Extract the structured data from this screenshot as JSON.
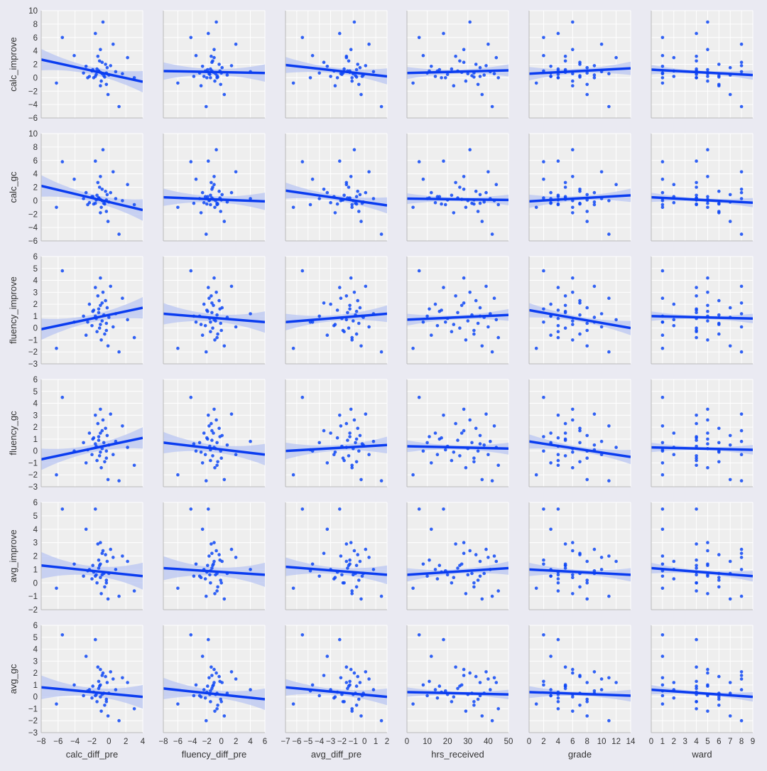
{
  "chart_data": {
    "type": "scatter",
    "style": {
      "background": "#eaeaf2",
      "panel_background": "#eeeeee",
      "grid_color": "#ffffff",
      "point_color": "#0d47f5",
      "line_color": "#0a3cf0",
      "band_color": "#b9c6f2",
      "axis_line_color": "#bbbbbb",
      "tick_text_color": "#333333",
      "grid": true
    },
    "x_variables": [
      {
        "key": "calc_diff_pre",
        "label": "calc_diff_pre",
        "range": [
          -8,
          4
        ],
        "ticks": [
          -8,
          -6,
          -4,
          -2,
          0,
          2,
          4
        ],
        "tick_labels": [
          "−8",
          "−6",
          "−4",
          "−2",
          "0",
          "2",
          "4"
        ]
      },
      {
        "key": "fluency_diff_pre",
        "label": "fluency_diff_pre",
        "range": [
          -8,
          6
        ],
        "ticks": [
          -8,
          -6,
          -4,
          -2,
          0,
          2,
          4,
          6
        ],
        "tick_labels": [
          "−8",
          "−6",
          "−4",
          "−2",
          "0",
          "2",
          "4",
          "6"
        ]
      },
      {
        "key": "avg_diff_pre",
        "label": "avg_diff_pre",
        "range": [
          -7,
          2
        ],
        "ticks": [
          -7,
          -6,
          -5,
          -4,
          -3,
          -2,
          -1,
          0,
          1,
          2
        ],
        "tick_labels": [
          "−7",
          "−6",
          "−5",
          "−4",
          "−3",
          "−2",
          "−1",
          "0",
          "1",
          "2"
        ]
      },
      {
        "key": "hrs_received",
        "label": "hrs_received",
        "range": [
          0,
          50
        ],
        "ticks": [
          0,
          10,
          20,
          30,
          40,
          50
        ],
        "tick_labels": [
          "0",
          "10",
          "20",
          "30",
          "40",
          "50"
        ]
      },
      {
        "key": "grade",
        "label": "grade",
        "range": [
          0,
          14
        ],
        "ticks": [
          0,
          2,
          4,
          6,
          8,
          10,
          12,
          14
        ],
        "tick_labels": [
          "0",
          "2",
          "4",
          "6",
          "8",
          "10",
          "12",
          "14"
        ]
      },
      {
        "key": "ward",
        "label": "ward",
        "range": [
          0,
          9
        ],
        "ticks": [
          0,
          1,
          2,
          3,
          4,
          5,
          6,
          7,
          8,
          9
        ],
        "tick_labels": [
          "0",
          "1",
          "2",
          "3",
          "4",
          "5",
          "6",
          "7",
          "8",
          "9"
        ]
      }
    ],
    "y_variables": [
      {
        "key": "calc_improve",
        "label": "calc_improve",
        "range": [
          -6,
          10
        ],
        "ticks": [
          -6,
          -4,
          -2,
          0,
          2,
          4,
          6,
          8,
          10
        ],
        "tick_labels": [
          "−6",
          "−4",
          "−2",
          "0",
          "2",
          "4",
          "6",
          "8",
          "10"
        ]
      },
      {
        "key": "calc_gc",
        "label": "calc_gc",
        "range": [
          -6,
          10
        ],
        "ticks": [
          -6,
          -4,
          -2,
          0,
          2,
          4,
          6,
          8,
          10
        ],
        "tick_labels": [
          "−6",
          "−4",
          "−2",
          "0",
          "2",
          "4",
          "6",
          "8",
          "10"
        ]
      },
      {
        "key": "fluency_improve",
        "label": "fluency_improve",
        "range": [
          -3,
          6
        ],
        "ticks": [
          -3,
          -2,
          -1,
          0,
          1,
          2,
          3,
          4,
          5,
          6
        ],
        "tick_labels": [
          "−3",
          "−2",
          "−1",
          "0",
          "1",
          "2",
          "3",
          "4",
          "5",
          "6"
        ]
      },
      {
        "key": "fluency_gc",
        "label": "fluency_gc",
        "range": [
          -3,
          6
        ],
        "ticks": [
          -3,
          -2,
          -1,
          0,
          1,
          2,
          3,
          4,
          5,
          6
        ],
        "tick_labels": [
          "−3",
          "−2",
          "−1",
          "0",
          "1",
          "2",
          "3",
          "4",
          "5",
          "6"
        ]
      },
      {
        "key": "avg_improve",
        "label": "avg_improve",
        "range": [
          -2,
          6
        ],
        "ticks": [
          -2,
          -1,
          0,
          1,
          2,
          3,
          4,
          5,
          6
        ],
        "tick_labels": [
          "−2",
          "−1",
          "0",
          "1",
          "2",
          "3",
          "4",
          "5",
          "6"
        ]
      },
      {
        "key": "avg_gc",
        "label": "avg_gc",
        "range": [
          -3,
          6
        ],
        "ticks": [
          -3,
          -2,
          -1,
          0,
          1,
          2,
          3,
          4,
          5,
          6
        ],
        "tick_labels": [
          "−3",
          "−2",
          "−1",
          "0",
          "1",
          "2",
          "3",
          "4",
          "5",
          "6"
        ]
      }
    ],
    "regression_lines": [
      [
        {
          "x0": -8,
          "y0": 2.7,
          "x1": 4,
          "y1": -0.6,
          "band": 1.6
        },
        {
          "x0": -8,
          "y0": 1.0,
          "x1": 6,
          "y1": 0.7,
          "band": 1.3
        },
        {
          "x0": -7,
          "y0": 1.9,
          "x1": 2,
          "y1": 0.2,
          "band": 1.2
        },
        {
          "x0": 0,
          "y0": 0.7,
          "x1": 50,
          "y1": 1.1,
          "band": 0.9
        },
        {
          "x0": 0,
          "y0": 0.6,
          "x1": 14,
          "y1": 1.4,
          "band": 1.0
        },
        {
          "x0": 0,
          "y0": 1.2,
          "x1": 9,
          "y1": 0.4,
          "band": 0.7
        }
      ],
      [
        {
          "x0": -8,
          "y0": 2.2,
          "x1": 4,
          "y1": -1.4,
          "band": 1.6
        },
        {
          "x0": -8,
          "y0": 0.5,
          "x1": 6,
          "y1": -0.1,
          "band": 1.3
        },
        {
          "x0": -7,
          "y0": 1.5,
          "x1": 2,
          "y1": -0.7,
          "band": 1.2
        },
        {
          "x0": 0,
          "y0": 0.3,
          "x1": 50,
          "y1": 0.1,
          "band": 0.8
        },
        {
          "x0": 0,
          "y0": -0.1,
          "x1": 14,
          "y1": 0.8,
          "band": 1.0
        },
        {
          "x0": 0,
          "y0": 0.5,
          "x1": 9,
          "y1": -0.3,
          "band": 0.7
        }
      ],
      [
        {
          "x0": -8,
          "y0": -0.1,
          "x1": 4,
          "y1": 1.7,
          "band": 0.9
        },
        {
          "x0": -8,
          "y0": 1.2,
          "x1": 6,
          "y1": 0.5,
          "band": 0.9
        },
        {
          "x0": -7,
          "y0": 0.5,
          "x1": 2,
          "y1": 1.2,
          "band": 0.7
        },
        {
          "x0": 0,
          "y0": 0.7,
          "x1": 50,
          "y1": 1.1,
          "band": 0.5
        },
        {
          "x0": 0,
          "y0": 1.5,
          "x1": 14,
          "y1": 0.0,
          "band": 0.6
        },
        {
          "x0": 0,
          "y0": 1.0,
          "x1": 9,
          "y1": 0.8,
          "band": 0.4
        }
      ],
      [
        {
          "x0": -8,
          "y0": -0.7,
          "x1": 4,
          "y1": 1.1,
          "band": 0.9
        },
        {
          "x0": -8,
          "y0": 0.7,
          "x1": 6,
          "y1": -0.3,
          "band": 0.9
        },
        {
          "x0": -7,
          "y0": 0.0,
          "x1": 2,
          "y1": 0.5,
          "band": 0.7
        },
        {
          "x0": 0,
          "y0": 0.4,
          "x1": 50,
          "y1": 0.2,
          "band": 0.5
        },
        {
          "x0": 0,
          "y0": 0.8,
          "x1": 14,
          "y1": -0.5,
          "band": 0.6
        },
        {
          "x0": 0,
          "y0": 0.3,
          "x1": 9,
          "y1": 0.1,
          "band": 0.4
        }
      ],
      [
        {
          "x0": -8,
          "y0": 1.3,
          "x1": 4,
          "y1": 0.5,
          "band": 1.0
        },
        {
          "x0": -8,
          "y0": 1.1,
          "x1": 6,
          "y1": 0.6,
          "band": 0.9
        },
        {
          "x0": -7,
          "y0": 1.2,
          "x1": 2,
          "y1": 0.6,
          "band": 0.7
        },
        {
          "x0": 0,
          "y0": 0.6,
          "x1": 50,
          "y1": 1.1,
          "band": 0.5
        },
        {
          "x0": 0,
          "y0": 1.0,
          "x1": 14,
          "y1": 0.6,
          "band": 0.5
        },
        {
          "x0": 0,
          "y0": 1.1,
          "x1": 9,
          "y1": 0.5,
          "band": 0.4
        }
      ],
      [
        {
          "x0": -8,
          "y0": 0.8,
          "x1": 4,
          "y1": 0.0,
          "band": 1.0
        },
        {
          "x0": -8,
          "y0": 0.7,
          "x1": 6,
          "y1": -0.2,
          "band": 0.9
        },
        {
          "x0": -7,
          "y0": 0.8,
          "x1": 2,
          "y1": 0.0,
          "band": 0.7
        },
        {
          "x0": 0,
          "y0": 0.4,
          "x1": 50,
          "y1": 0.2,
          "band": 0.4
        },
        {
          "x0": 0,
          "y0": 0.4,
          "x1": 14,
          "y1": 0.1,
          "band": 0.5
        },
        {
          "x0": 0,
          "y0": 0.6,
          "x1": 9,
          "y1": 0.0,
          "band": 0.4
        }
      ]
    ],
    "points": {
      "x": {
        "calc_diff_pre": [
          -6.2,
          -5.5,
          -4.1,
          -3.0,
          -2.7,
          -2.3,
          -2.0,
          -1.8,
          -1.6,
          -1.5,
          -1.4,
          -1.3,
          -1.2,
          -1.1,
          -1.0,
          -1.0,
          -0.9,
          -0.8,
          -0.7,
          -0.6,
          -0.5,
          -0.4,
          -0.3,
          -0.2,
          -0.1,
          0.0,
          0.2,
          0.5,
          0.8,
          1.2,
          1.6,
          2.2,
          3.0,
          -1.9,
          -1.0,
          -0.8,
          -0.3,
          -1.6,
          -2.5,
          -1.2
        ],
        "fluency_diff_pre": [
          -6.0,
          -4.2,
          -3.5,
          -3.0,
          -2.6,
          -2.4,
          -2.2,
          -2.0,
          -1.8,
          -1.6,
          -1.5,
          -1.4,
          -1.3,
          -1.2,
          -1.1,
          -1.0,
          -0.9,
          -0.8,
          -0.7,
          -0.6,
          -0.5,
          -0.3,
          -0.1,
          0.1,
          0.4,
          0.8,
          1.4,
          2.0,
          4.0,
          -2.1,
          -1.7,
          -1.0,
          -0.6,
          -1.9,
          -2.8,
          -1.3,
          0.0,
          -3.8,
          -1.5,
          -0.2
        ],
        "avg_diff_pre": [
          -6.3,
          -5.5,
          -4.6,
          -4.0,
          -3.3,
          -3.0,
          -2.7,
          -2.4,
          -2.2,
          -2.0,
          -1.8,
          -1.6,
          -1.5,
          -1.4,
          -1.3,
          -1.2,
          -1.1,
          -1.0,
          -0.9,
          -0.8,
          -0.7,
          -0.6,
          -0.5,
          -0.4,
          -0.3,
          -0.1,
          0.1,
          0.4,
          0.8,
          1.5,
          -2.1,
          -1.6,
          -1.1,
          -0.7,
          -2.6,
          -3.6,
          -1.9,
          -0.2,
          -4.8,
          -1.3
        ],
        "hrs_received": [
          3,
          6,
          8,
          10,
          12,
          14,
          15,
          17,
          18,
          20,
          22,
          24,
          25,
          26,
          27,
          28,
          29,
          30,
          31,
          32,
          33,
          34,
          35,
          36,
          37,
          38,
          39,
          40,
          41,
          42,
          43,
          44,
          45,
          16,
          23,
          28,
          33,
          36,
          19,
          11
        ],
        "grade": [
          1,
          2,
          2,
          3,
          3,
          3,
          4,
          4,
          4,
          4,
          4,
          5,
          5,
          5,
          5,
          6,
          6,
          6,
          6,
          7,
          7,
          7,
          8,
          8,
          8,
          9,
          9,
          10,
          10,
          11,
          11,
          12,
          4,
          5,
          6,
          7,
          8,
          3,
          9,
          2
        ],
        "ward": [
          1,
          1,
          1,
          1,
          1,
          2,
          2,
          4,
          4,
          4,
          4,
          4,
          4,
          4,
          5,
          5,
          5,
          5,
          5,
          6,
          6,
          6,
          6,
          7,
          7,
          7,
          8,
          8,
          8,
          8,
          1,
          2,
          4,
          5,
          6,
          8,
          4,
          5,
          1,
          4
        ]
      },
      "y": {
        "calc_improve": [
          -0.8,
          6.0,
          3.3,
          0.7,
          1.7,
          0.2,
          1.0,
          0.0,
          6.6,
          0.5,
          1.3,
          3.2,
          1.0,
          2.5,
          0.8,
          4.2,
          -0.5,
          0.6,
          8.3,
          0.3,
          0.1,
          2.0,
          -1.0,
          1.5,
          -2.5,
          0.4,
          1.8,
          5.0,
          0.9,
          -4.3,
          0.6,
          3.0,
          0.0,
          1.2,
          -1.2,
          2.3,
          0.7,
          0.2,
          0.0,
          1.0
        ],
        "calc_gc": [
          -1.0,
          5.8,
          3.2,
          0.3,
          1.2,
          -0.3,
          0.6,
          -0.5,
          5.9,
          0.1,
          0.8,
          2.7,
          0.4,
          2.0,
          0.2,
          3.6,
          -1.0,
          0.0,
          7.6,
          -0.4,
          -0.5,
          1.4,
          -1.6,
          0.9,
          -3.1,
          -0.2,
          1.2,
          4.3,
          0.3,
          -5.0,
          0.0,
          2.4,
          -0.6,
          0.6,
          -1.8,
          1.7,
          0.1,
          -0.4,
          -0.6,
          0.4
        ],
        "fluency_improve": [
          -1.7,
          4.8,
          0.5,
          1.0,
          -0.6,
          2.0,
          0.2,
          1.5,
          3.4,
          0.8,
          -0.3,
          2.7,
          1.3,
          0.0,
          1.9,
          4.2,
          -1.0,
          0.6,
          3.0,
          1.1,
          -0.5,
          2.3,
          0.4,
          1.7,
          -1.5,
          0.9,
          3.5,
          0.1,
          1.2,
          -2.0,
          2.5,
          0.7,
          -0.8,
          1.4,
          0.3,
          2.1,
          -0.2,
          1.0,
          0.5,
          1.6
        ],
        "fluency_gc": [
          -2.0,
          4.5,
          0.0,
          0.7,
          -1.0,
          1.5,
          -0.3,
          1.1,
          3.0,
          0.4,
          -0.8,
          2.3,
          0.9,
          -0.4,
          1.5,
          3.5,
          -1.4,
          0.2,
          2.6,
          0.7,
          -0.9,
          1.9,
          0.0,
          1.3,
          -2.4,
          0.5,
          3.1,
          -0.3,
          0.8,
          -2.5,
          2.1,
          0.3,
          -1.2,
          1.0,
          -0.1,
          1.7,
          -0.6,
          0.6,
          0.1,
          1.2
        ],
        "avg_improve": [
          -0.4,
          5.5,
          1.4,
          0.5,
          4.0,
          1.0,
          0.3,
          0.8,
          5.5,
          0.6,
          0.0,
          2.9,
          1.1,
          1.3,
          1.4,
          3.0,
          -0.8,
          0.6,
          2.4,
          0.7,
          -0.3,
          2.1,
          0.2,
          1.6,
          -1.2,
          0.7,
          2.5,
          1.9,
          1.0,
          -1.0,
          2.0,
          1.6,
          -0.6,
          1.3,
          0.4,
          2.2,
          0.0,
          0.5,
          0.9,
          1.7
        ],
        "avg_gc": [
          -0.6,
          5.2,
          1.0,
          0.1,
          3.4,
          0.6,
          -0.1,
          0.4,
          4.8,
          0.2,
          -0.4,
          2.5,
          0.7,
          0.9,
          1.0,
          2.3,
          -1.2,
          0.2,
          2.0,
          0.3,
          -0.7,
          1.7,
          -0.2,
          1.2,
          -1.6,
          0.3,
          2.1,
          1.5,
          0.6,
          -2.0,
          1.6,
          1.2,
          -1.0,
          0.9,
          0.0,
          1.8,
          -0.4,
          0.1,
          0.5,
          1.3
        ]
      }
    }
  }
}
